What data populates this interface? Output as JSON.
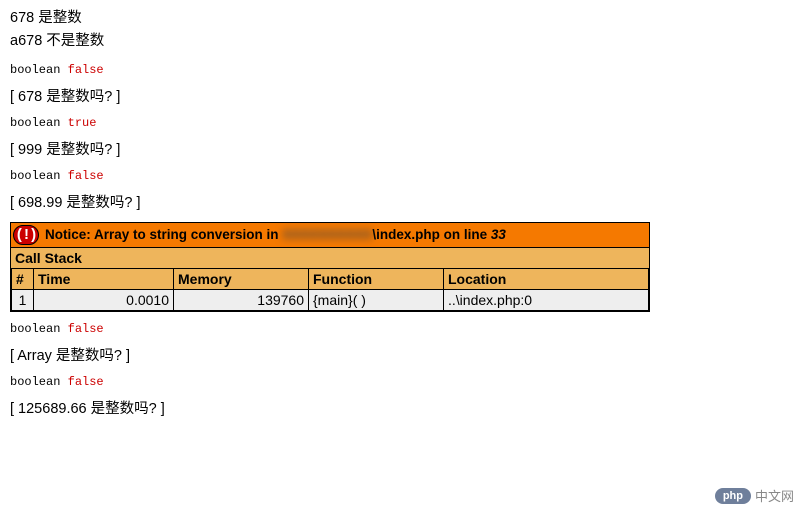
{
  "lines": {
    "l1": "678 是整数",
    "l2": "a678 不是整数"
  },
  "dumps": {
    "d1": {
      "type": "boolean",
      "value": "false"
    },
    "d2": {
      "type": "boolean",
      "value": "true"
    },
    "d3": {
      "type": "boolean",
      "value": "false"
    },
    "d4": {
      "type": "boolean",
      "value": "false"
    },
    "d5": {
      "type": "boolean",
      "value": "false"
    }
  },
  "checks": {
    "c1": "[ 678 是整数吗? ]",
    "c2": "[ 999 是整数吗? ]",
    "c3": "[ 698.99 是整数吗? ]",
    "c4": "[ Array 是整数吗? ]",
    "c5": "[ 125689.66 是整数吗? ]"
  },
  "notice": {
    "bang": "( ! )",
    "prefix": "Notice: Array to string conversion in ",
    "redacted": "XXXXXXXXXX",
    "file": "\\index.php",
    "on_line": " on line ",
    "line_no": "33",
    "callstack_label": "Call Stack",
    "headers": {
      "n": "#",
      "time": "Time",
      "mem": "Memory",
      "func": "Function",
      "loc": "Location"
    },
    "row": {
      "n": "1",
      "time": "0.0010",
      "mem": "139760",
      "func": "{main}( )",
      "loc": "..\\index.php:0"
    },
    "colors": {
      "header_bg": "#f57900",
      "sub_bg": "#eeb55c",
      "row_bg": "#eeeeee",
      "bang_bg": "#cc0000",
      "border": "#000000"
    }
  },
  "watermark": {
    "pill": "php",
    "text": "中文网"
  }
}
